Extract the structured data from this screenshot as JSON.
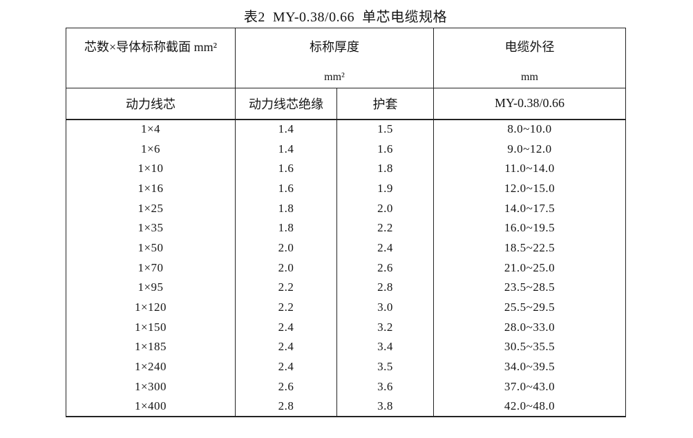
{
  "page": {
    "title": "表2  MY-0.38/0.66  单芯电缆规格"
  },
  "table": {
    "header": {
      "col_core": "芯数×导体标称截面 mm²",
      "col_thickness": "标称厚度",
      "col_thickness_unit": "mm²",
      "col_diameter": "电缆外径",
      "col_diameter_unit": "mm",
      "sub_core": "动力线芯",
      "sub_insulation": "动力线芯绝缘",
      "sub_sheath": "护套",
      "sub_model": "MY-0.38/0.66"
    },
    "rows": [
      [
        "1×4",
        "1.4",
        "1.5",
        "8.0~10.0"
      ],
      [
        "1×6",
        "1.4",
        "1.6",
        "9.0~12.0"
      ],
      [
        "1×10",
        "1.6",
        "1.8",
        "11.0~14.0"
      ],
      [
        "1×16",
        "1.6",
        "1.9",
        "12.0~15.0"
      ],
      [
        "1×25",
        "1.8",
        "2.0",
        "14.0~17.5"
      ],
      [
        "1×35",
        "1.8",
        "2.2",
        "16.0~19.5"
      ],
      [
        "1×50",
        "2.0",
        "2.4",
        "18.5~22.5"
      ],
      [
        "1×70",
        "2.0",
        "2.6",
        "21.0~25.0"
      ],
      [
        "1×95",
        "2.2",
        "2.8",
        "23.5~28.5"
      ],
      [
        "1×120",
        "2.2",
        "3.0",
        "25.5~29.5"
      ],
      [
        "1×150",
        "2.4",
        "3.2",
        "28.0~33.0"
      ],
      [
        "1×185",
        "2.4",
        "3.4",
        "30.5~35.5"
      ],
      [
        "1×240",
        "2.4",
        "3.5",
        "34.0~39.5"
      ],
      [
        "1×300",
        "2.6",
        "3.6",
        "37.0~43.0"
      ],
      [
        "1×400",
        "2.8",
        "3.8",
        "42.0~48.0"
      ]
    ],
    "colors": {
      "text": "#141414",
      "border": "#222222",
      "background": "#ffffff"
    }
  }
}
